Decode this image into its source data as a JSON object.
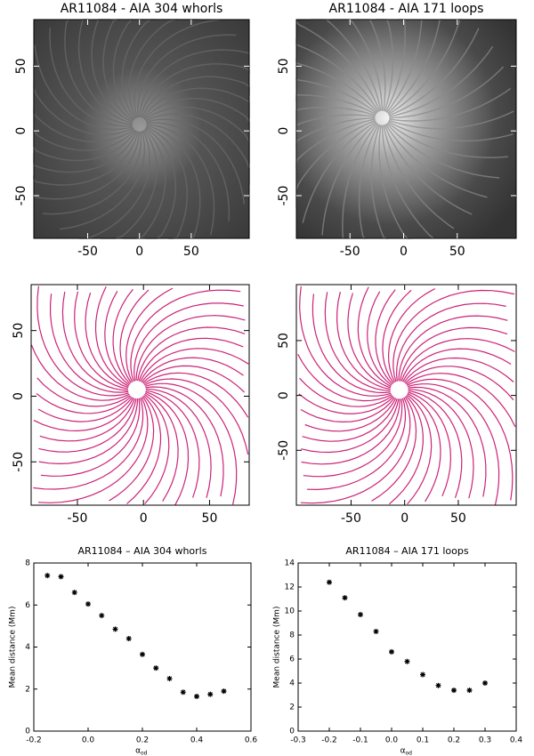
{
  "chart_data": [
    {
      "type": "image",
      "title": "AR11084 - AIA 304 whorls",
      "xlim": [
        -102,
        106
      ],
      "ylim": [
        -83,
        86
      ],
      "xticks": [
        -50,
        0,
        50
      ],
      "yticks": [
        -50,
        0,
        50
      ],
      "color": "#6a6a6a"
    },
    {
      "type": "image",
      "title": "AR11084 - AIA 171 loops",
      "xlim": [
        -100,
        105
      ],
      "ylim": [
        -83,
        86
      ],
      "xticks": [
        -50,
        0,
        50
      ],
      "yticks": [
        -50,
        0,
        50
      ],
      "color": "#8a8a8a"
    },
    {
      "type": "contour",
      "xlim": [
        -85,
        80
      ],
      "ylim": [
        -83,
        85
      ],
      "xticks": [
        -50,
        0,
        50
      ],
      "yticks": [
        -50,
        0,
        50
      ],
      "color": "#cc2277"
    },
    {
      "type": "contour",
      "xlim": [
        -101,
        104
      ],
      "ylim": [
        -100,
        101
      ],
      "xticks": [
        -50,
        0,
        50
      ],
      "yticks": [
        -50,
        0,
        50
      ],
      "color": "#cc2277"
    },
    {
      "type": "scatter",
      "title": "AR11084 – AIA 304 whorls",
      "y_label": "Mean distance (Mm)",
      "x_label": "α",
      "x_label_sub": "od",
      "x": [
        -0.15,
        -0.1,
        -0.05,
        0,
        0.05,
        0.1,
        0.15,
        0.2,
        0.25,
        0.3,
        0.35,
        0.4,
        0.45,
        0.5
      ],
      "values": [
        7.4,
        7.35,
        6.6,
        6.05,
        5.5,
        4.85,
        4.4,
        3.65,
        3.0,
        2.5,
        1.85,
        1.65,
        1.75,
        1.9
      ],
      "xlim": [
        -0.2,
        0.6
      ],
      "ylim": [
        0,
        8
      ],
      "xticks": [
        -0.2,
        {
          "value": 0,
          "label": "0.0"
        },
        0.2,
        0.4,
        0.6
      ],
      "yticks": [
        0,
        2,
        4,
        6,
        8
      ],
      "color": "#000000"
    },
    {
      "type": "scatter",
      "title": "AR11084 – AIA 171 loops",
      "y_label": "Mean distance (Mm)",
      "x_label": "α",
      "x_label_sub": "od",
      "x": [
        -0.2,
        -0.15,
        -0.1,
        -0.05,
        0,
        0.05,
        0.1,
        0.15,
        0.2,
        0.25,
        0.3
      ],
      "values": [
        12.4,
        11.1,
        9.7,
        8.3,
        6.6,
        5.8,
        4.7,
        3.8,
        3.4,
        3.4,
        4.0
      ],
      "xlim": [
        -0.3,
        0.4
      ],
      "ylim": [
        0,
        14
      ],
      "xticks": [
        -0.3,
        -0.2,
        -0.1,
        {
          "value": 0,
          "label": "0.0"
        },
        0.1,
        0.2,
        0.3,
        0.4
      ],
      "yticks": [
        0,
        2,
        4,
        6,
        8,
        10,
        12,
        14
      ],
      "color": "#000000"
    }
  ]
}
